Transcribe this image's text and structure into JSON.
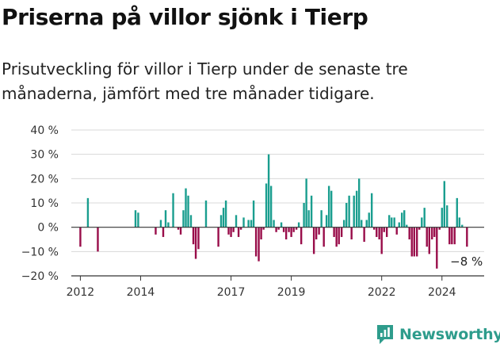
{
  "title": "Priserna på villor sjönk i Tierp",
  "subtitle": "Prisutveckling för villor i Tierp under de senaste tre månaderna, jämfört med tre månader tidigare.",
  "brand": {
    "name": "Newsworthy"
  },
  "colors": {
    "positive": "#1a9e8f",
    "negative": "#990d4a",
    "axis": "#333333",
    "grid": "#d8d8d8",
    "brand": "#2e9c8c"
  },
  "chart_data": {
    "type": "bar",
    "ylim": [
      -20,
      40
    ],
    "yticks": [
      -20,
      -10,
      0,
      10,
      20,
      30,
      40
    ],
    "ytick_labels": [
      "−20 %",
      "−10 %",
      "0 %",
      "10 %",
      "20 %",
      "30 %",
      "40 %"
    ],
    "xlim": [
      2011.7,
      2025.4
    ],
    "xticks": [
      2012,
      2014,
      2017,
      2019,
      2022,
      2024
    ],
    "xtick_labels": [
      "2012",
      "2014",
      "2017",
      "2019",
      "2022",
      "2024"
    ],
    "grid": true,
    "x": [
      2012.0,
      2012.25,
      2012.58,
      2013.83,
      2013.92,
      2014.5,
      2014.67,
      2014.75,
      2014.83,
      2014.92,
      2015.08,
      2015.25,
      2015.33,
      2015.42,
      2015.5,
      2015.58,
      2015.67,
      2015.75,
      2015.83,
      2015.92,
      2016.17,
      2016.58,
      2016.67,
      2016.75,
      2016.83,
      2016.92,
      2017.0,
      2017.08,
      2017.17,
      2017.25,
      2017.33,
      2017.42,
      2017.58,
      2017.67,
      2017.75,
      2017.83,
      2017.92,
      2018.0,
      2018.08,
      2018.17,
      2018.25,
      2018.33,
      2018.42,
      2018.5,
      2018.58,
      2018.67,
      2018.75,
      2018.83,
      2018.92,
      2019.0,
      2019.08,
      2019.17,
      2019.25,
      2019.33,
      2019.42,
      2019.5,
      2019.58,
      2019.67,
      2019.75,
      2019.83,
      2019.92,
      2020.0,
      2020.08,
      2020.17,
      2020.25,
      2020.33,
      2020.42,
      2020.5,
      2020.58,
      2020.67,
      2020.75,
      2020.83,
      2020.92,
      2021.0,
      2021.08,
      2021.17,
      2021.25,
      2021.33,
      2021.42,
      2021.5,
      2021.58,
      2021.67,
      2021.75,
      2021.83,
      2021.92,
      2022.0,
      2022.08,
      2022.17,
      2022.25,
      2022.33,
      2022.42,
      2022.5,
      2022.58,
      2022.67,
      2022.75,
      2022.83,
      2022.92,
      2023.0,
      2023.08,
      2023.17,
      2023.25,
      2023.33,
      2023.42,
      2023.5,
      2023.58,
      2023.67,
      2023.75,
      2023.83,
      2023.92,
      2024.0,
      2024.08,
      2024.17,
      2024.25,
      2024.33,
      2024.42,
      2024.5,
      2024.58,
      2024.67,
      2024.83
    ],
    "values": [
      -8,
      12,
      -10,
      7,
      6,
      -3,
      3,
      -4,
      7,
      2,
      14,
      -1,
      -3,
      7,
      16,
      13,
      5,
      -7,
      -13,
      -9,
      11,
      -8,
      5,
      8,
      11,
      -3,
      -4,
      -2,
      5,
      -4,
      -1,
      4,
      3,
      3,
      11,
      -12,
      -14,
      -5,
      -1,
      18,
      30,
      17,
      3,
      -2,
      -1,
      2,
      -2,
      -5,
      -2,
      -4,
      -2,
      -1,
      2,
      -7,
      10,
      20,
      7,
      13,
      -11,
      -5,
      -3,
      7,
      -8,
      5,
      17,
      15,
      -4,
      -8,
      -7,
      -4,
      3,
      10,
      13,
      -5,
      13,
      15,
      20,
      3,
      -6,
      3,
      6,
      14,
      -1,
      -4,
      -5,
      -11,
      -2,
      -4,
      5,
      4,
      4,
      -3,
      2,
      6,
      7,
      1,
      -5,
      -12,
      -12,
      -12,
      -1,
      4,
      8,
      -8,
      -11,
      -5,
      -4,
      -17,
      -1,
      8,
      19,
      9,
      -7,
      -7,
      -7,
      12,
      4,
      1,
      -8
    ],
    "annotations": [
      {
        "x": 2024.83,
        "y": -8,
        "text": "−8 %"
      }
    ]
  }
}
